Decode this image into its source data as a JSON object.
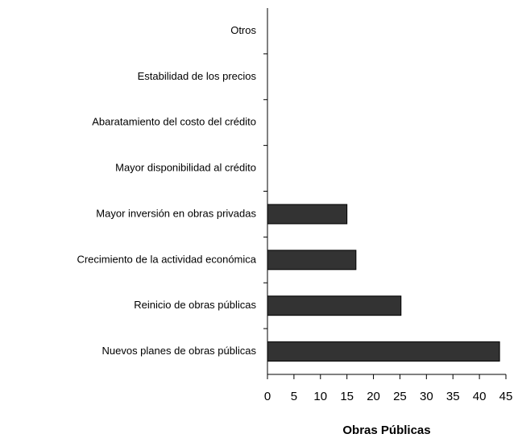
{
  "chart_data": {
    "type": "bar",
    "orientation": "horizontal",
    "xlabel": "Obras Públicas",
    "categories": [
      "Otros",
      "Estabilidad de los precios",
      "Abaratamiento del costo del crédito",
      "Mayor disponibilidad al crédito",
      "Mayor inversión en obras privadas",
      "Crecimiento de la actividad económica",
      "Reinicio de obras públicas",
      "Nuevos planes de obras públicas"
    ],
    "values": [
      0,
      0,
      0,
      0,
      15,
      16.7,
      25.2,
      43.8
    ],
    "color": "#333333",
    "xlim": [
      0,
      45
    ],
    "xticks": [
      0,
      5,
      10,
      15,
      20,
      25,
      30,
      35,
      40,
      45
    ],
    "grid": false
  }
}
